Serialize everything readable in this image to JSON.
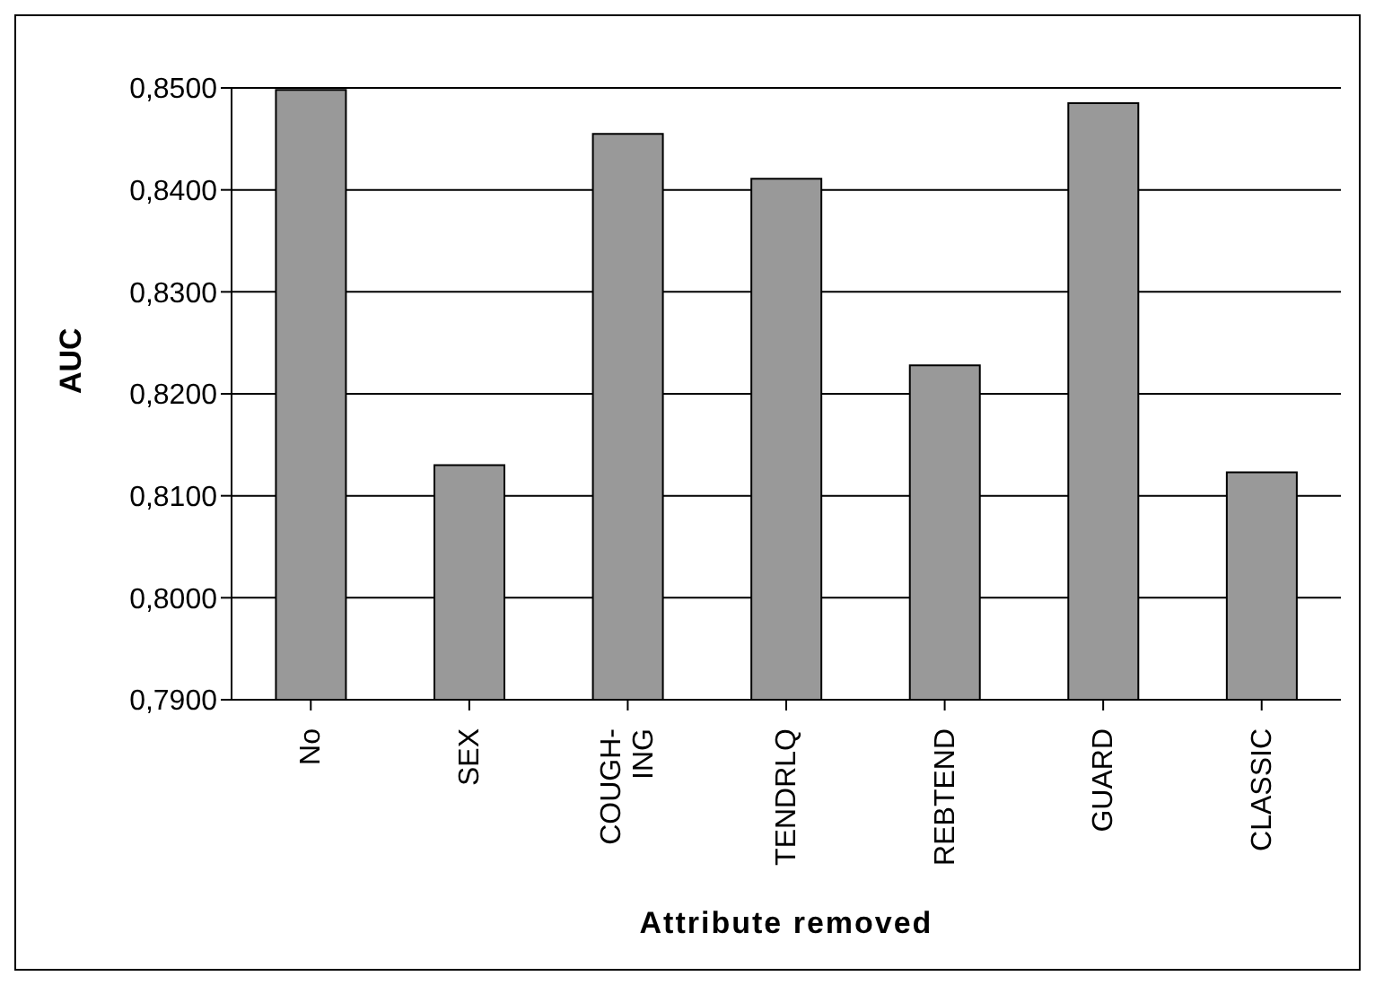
{
  "chart_data": {
    "type": "bar",
    "xlabel": "Attribute removed",
    "ylabel": "AUC",
    "categories": [
      "No",
      "SEX",
      "COUGH-\nING",
      "TENDRLQ",
      "REBTEND",
      "GUARD",
      "CLASSIC"
    ],
    "values": [
      0.8498,
      0.813,
      0.8455,
      0.8411,
      0.8228,
      0.8485,
      0.8123
    ],
    "color": "#999999",
    "ylim": [
      0.79,
      0.85
    ],
    "yticks": [
      {
        "value": 0.79,
        "label": "0,7900"
      },
      {
        "value": 0.8,
        "label": "0,8000"
      },
      {
        "value": 0.81,
        "label": "0,8100"
      },
      {
        "value": 0.82,
        "label": "0,8200"
      },
      {
        "value": 0.83,
        "label": "0,8300"
      },
      {
        "value": 0.84,
        "label": "0,8400"
      },
      {
        "value": 0.85,
        "label": "0,8500"
      }
    ],
    "grid": "y",
    "legend": false
  }
}
